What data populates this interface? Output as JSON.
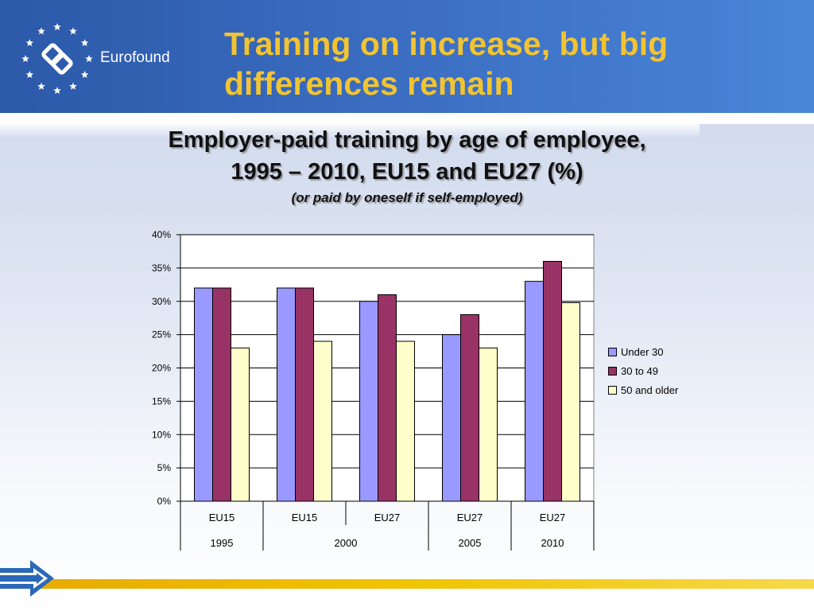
{
  "header": {
    "logo_text": "Eurofound",
    "slide_title_line1": "Training on increase, but big",
    "slide_title_line2": "differences remain"
  },
  "chart_data": {
    "type": "bar",
    "title_line1": "Employer-paid training by age of employee,",
    "title_line2": "1995 – 2010, EU15 and EU27 (%)",
    "subtitle": "(or paid by oneself if self-employed)",
    "categories": [
      "EU15",
      "EU15",
      "EU27",
      "EU27",
      "EU27"
    ],
    "category_groups": [
      {
        "label": "1995",
        "span": 1
      },
      {
        "label": "2000",
        "span": 2
      },
      {
        "label": "2005",
        "span": 1
      },
      {
        "label": "2010",
        "span": 1
      }
    ],
    "series": [
      {
        "name": "Under 30",
        "color": "#9999ff",
        "values": [
          32,
          32,
          30,
          25,
          33
        ]
      },
      {
        "name": "30 to 49",
        "color": "#993366",
        "values": [
          32,
          32,
          31,
          28,
          36
        ]
      },
      {
        "name": "50 and older",
        "color": "#ffffcc",
        "values": [
          23,
          24,
          24,
          23,
          29.8
        ]
      }
    ],
    "ylim": [
      0,
      40
    ],
    "yticks": [
      0,
      5,
      10,
      15,
      20,
      25,
      30,
      35,
      40
    ],
    "ytick_labels": [
      "0%",
      "5%",
      "10%",
      "15%",
      "20%",
      "25%",
      "30%",
      "35%",
      "40%"
    ],
    "grid": true,
    "legend_position": "right"
  }
}
